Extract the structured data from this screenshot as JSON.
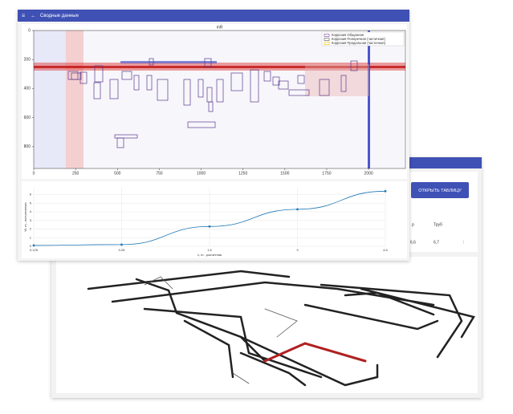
{
  "app_bar": {
    "title": "Сводные данные"
  },
  "back_window": {
    "button": "ОТКРЫТЬ ТАБЛИЦУ",
    "table": {
      "header": [
        "р",
        "Труб"
      ],
      "row": [
        "6,6",
        "6,7"
      ]
    }
  },
  "chart_data": [
    {
      "type": "heatmap",
      "title": "mR",
      "legend": [
        {
          "name": "Коррозия Общинная",
          "color": "#7b3f9e"
        },
        {
          "name": "Коррозия Поперечная (частичная)",
          "color": "#555555"
        },
        {
          "name": "Коррозия Продольная (частичная)",
          "color": "#e8c000"
        }
      ],
      "xlim": [
        0,
        2220
      ],
      "xticks": [
        0,
        250,
        500,
        750,
        1000,
        1250,
        1500,
        1750,
        2000
      ],
      "ylim": [
        0,
        950
      ],
      "yticks": [
        0,
        200,
        400,
        600,
        800
      ]
    },
    {
      "type": "line",
      "x_label": "λ, m - расчетная",
      "y_label": "W, m - посчитанная",
      "categories": [
        "0.125",
        "0.25",
        "1.5",
        "3",
        "4.5"
      ],
      "values": [
        0.1,
        0.2,
        2.3,
        4.3,
        6.4
      ],
      "color": "#1f77b4",
      "ylim": [
        0,
        6.8
      ],
      "yticks": [
        0,
        1,
        2,
        3,
        4,
        5,
        6
      ],
      "grid": true
    }
  ]
}
